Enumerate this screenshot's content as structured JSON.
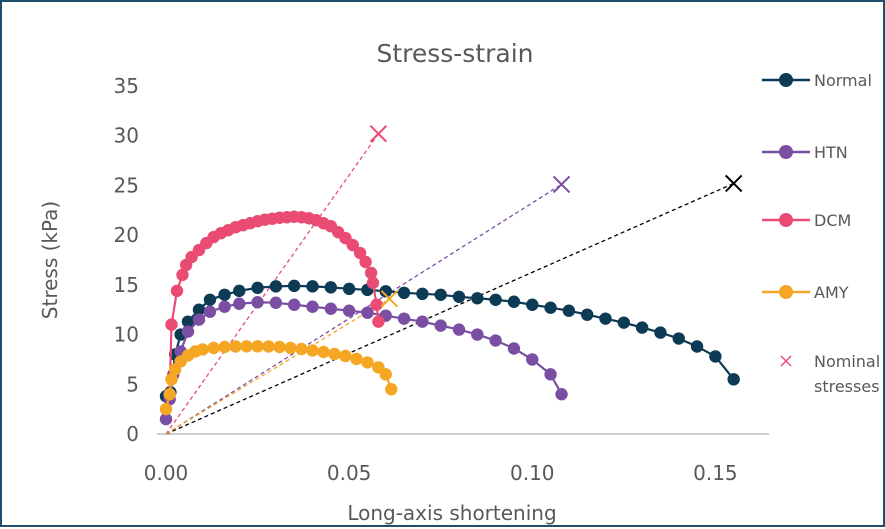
{
  "chart_data": {
    "type": "scatter",
    "title": "Stress-strain",
    "xlabel": "Long-axis shortening",
    "ylabel": "Stress (kPa)",
    "xlim": [
      0,
      0.16
    ],
    "ylim": [
      0,
      35
    ],
    "x_ticks": [
      "0.00",
      "0.05",
      "0.10",
      "0.15"
    ],
    "y_ticks": [
      "0",
      "5",
      "10",
      "15",
      "20",
      "25",
      "30",
      "35"
    ],
    "grid": false,
    "legend_position": "right",
    "series": [
      {
        "name": "Normal",
        "color": "#0d3b55",
        "points": [
          [
            0.0,
            3.8
          ],
          [
            0.0012,
            4.2
          ],
          [
            0.0025,
            8.0
          ],
          [
            0.004,
            10.0
          ],
          [
            0.006,
            11.3
          ],
          [
            0.009,
            12.5
          ],
          [
            0.012,
            13.5
          ],
          [
            0.016,
            14.0
          ],
          [
            0.02,
            14.4
          ],
          [
            0.025,
            14.7
          ],
          [
            0.03,
            14.85
          ],
          [
            0.035,
            14.9
          ],
          [
            0.04,
            14.85
          ],
          [
            0.045,
            14.75
          ],
          [
            0.05,
            14.6
          ],
          [
            0.055,
            14.5
          ],
          [
            0.06,
            14.35
          ],
          [
            0.065,
            14.2
          ],
          [
            0.07,
            14.1
          ],
          [
            0.075,
            14.0
          ],
          [
            0.08,
            13.8
          ],
          [
            0.085,
            13.65
          ],
          [
            0.09,
            13.5
          ],
          [
            0.095,
            13.3
          ],
          [
            0.1,
            13.0
          ],
          [
            0.105,
            12.7
          ],
          [
            0.11,
            12.4
          ],
          [
            0.115,
            12.0
          ],
          [
            0.12,
            11.6
          ],
          [
            0.125,
            11.2
          ],
          [
            0.13,
            10.7
          ],
          [
            0.135,
            10.2
          ],
          [
            0.14,
            9.6
          ],
          [
            0.145,
            8.8
          ],
          [
            0.15,
            7.8
          ],
          [
            0.155,
            5.5
          ]
        ]
      },
      {
        "name": "HTN",
        "color": "#7a4fa3",
        "points": [
          [
            0.0,
            1.5
          ],
          [
            0.001,
            3.5
          ],
          [
            0.002,
            6.0
          ],
          [
            0.004,
            8.3
          ],
          [
            0.006,
            10.3
          ],
          [
            0.009,
            11.5
          ],
          [
            0.012,
            12.3
          ],
          [
            0.016,
            12.8
          ],
          [
            0.02,
            13.1
          ],
          [
            0.025,
            13.25
          ],
          [
            0.03,
            13.2
          ],
          [
            0.035,
            13.0
          ],
          [
            0.04,
            12.8
          ],
          [
            0.045,
            12.6
          ],
          [
            0.05,
            12.4
          ],
          [
            0.055,
            12.2
          ],
          [
            0.06,
            11.9
          ],
          [
            0.065,
            11.6
          ],
          [
            0.07,
            11.3
          ],
          [
            0.075,
            10.9
          ],
          [
            0.08,
            10.5
          ],
          [
            0.085,
            10.0
          ],
          [
            0.09,
            9.4
          ],
          [
            0.095,
            8.6
          ],
          [
            0.1,
            7.5
          ],
          [
            0.105,
            6.0
          ],
          [
            0.108,
            4.0
          ]
        ]
      },
      {
        "name": "DCM",
        "color": "#e94b73",
        "points": [
          [
            0.001,
            4.0
          ],
          [
            0.0015,
            11.0
          ],
          [
            0.003,
            14.4
          ],
          [
            0.0045,
            16.0
          ],
          [
            0.0055,
            17.0
          ],
          [
            0.007,
            17.8
          ],
          [
            0.009,
            18.5
          ],
          [
            0.011,
            19.2
          ],
          [
            0.013,
            19.8
          ],
          [
            0.015,
            20.2
          ],
          [
            0.017,
            20.5
          ],
          [
            0.019,
            20.8
          ],
          [
            0.021,
            21.0
          ],
          [
            0.023,
            21.2
          ],
          [
            0.025,
            21.4
          ],
          [
            0.027,
            21.55
          ],
          [
            0.029,
            21.65
          ],
          [
            0.031,
            21.75
          ],
          [
            0.033,
            21.8
          ],
          [
            0.035,
            21.85
          ],
          [
            0.037,
            21.8
          ],
          [
            0.039,
            21.7
          ],
          [
            0.041,
            21.5
          ],
          [
            0.043,
            21.2
          ],
          [
            0.045,
            20.9
          ],
          [
            0.047,
            20.3
          ],
          [
            0.049,
            19.7
          ],
          [
            0.051,
            19.0
          ],
          [
            0.053,
            18.2
          ],
          [
            0.0545,
            17.3
          ],
          [
            0.056,
            16.2
          ],
          [
            0.0565,
            15.2
          ],
          [
            0.0575,
            13.0
          ],
          [
            0.058,
            11.3
          ]
        ]
      },
      {
        "name": "AMY",
        "color": "#f5a623",
        "points": [
          [
            0.0,
            2.5
          ],
          [
            0.001,
            4.0
          ],
          [
            0.0015,
            5.5
          ],
          [
            0.0025,
            6.5
          ],
          [
            0.004,
            7.3
          ],
          [
            0.006,
            7.9
          ],
          [
            0.008,
            8.3
          ],
          [
            0.01,
            8.5
          ],
          [
            0.013,
            8.65
          ],
          [
            0.016,
            8.75
          ],
          [
            0.019,
            8.8
          ],
          [
            0.022,
            8.82
          ],
          [
            0.025,
            8.82
          ],
          [
            0.028,
            8.8
          ],
          [
            0.031,
            8.75
          ],
          [
            0.034,
            8.65
          ],
          [
            0.037,
            8.55
          ],
          [
            0.04,
            8.4
          ],
          [
            0.043,
            8.25
          ],
          [
            0.046,
            8.05
          ],
          [
            0.049,
            7.85
          ],
          [
            0.052,
            7.55
          ],
          [
            0.055,
            7.2
          ],
          [
            0.058,
            6.7
          ],
          [
            0.06,
            6.0
          ],
          [
            0.0615,
            4.5
          ]
        ]
      }
    ],
    "nominal_stresses": {
      "name": "Nominal stresses",
      "name_lines": [
        "Nominal",
        "stresses"
      ],
      "points": [
        {
          "series": "Normal",
          "x": 0.155,
          "y": 25.2,
          "color": "#000000"
        },
        {
          "series": "HTN",
          "x": 0.108,
          "y": 25.1,
          "color": "#7a4fa3"
        },
        {
          "series": "DCM",
          "x": 0.058,
          "y": 30.2,
          "color": "#e94b73"
        },
        {
          "series": "AMY",
          "x": 0.061,
          "y": 13.6,
          "color": "#f5a623"
        }
      ],
      "line_origin": [
        0,
        0
      ],
      "legend_marker_color": "#e94b73"
    }
  }
}
